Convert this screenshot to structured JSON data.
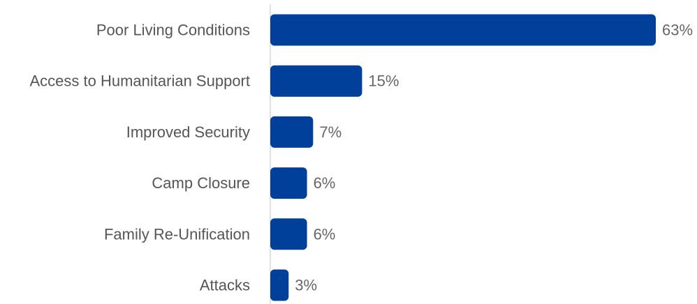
{
  "chart_data": {
    "type": "bar",
    "orientation": "horizontal",
    "categories": [
      "Poor Living Conditions",
      "Access to Humanitarian Support",
      "Improved Security",
      "Camp Closure",
      "Family Re-Unification",
      "Attacks"
    ],
    "values": [
      63,
      15,
      7,
      6,
      6,
      3
    ],
    "value_labels": [
      "63%",
      "15%",
      "7%",
      "6%",
      "6%",
      "3%"
    ],
    "title": "",
    "xlabel": "",
    "ylabel": "",
    "xlim": [
      0,
      63
    ],
    "grid": false,
    "legend": "none",
    "colors": {
      "bar": "#003f9a",
      "axis": "#d9d9d9"
    }
  }
}
